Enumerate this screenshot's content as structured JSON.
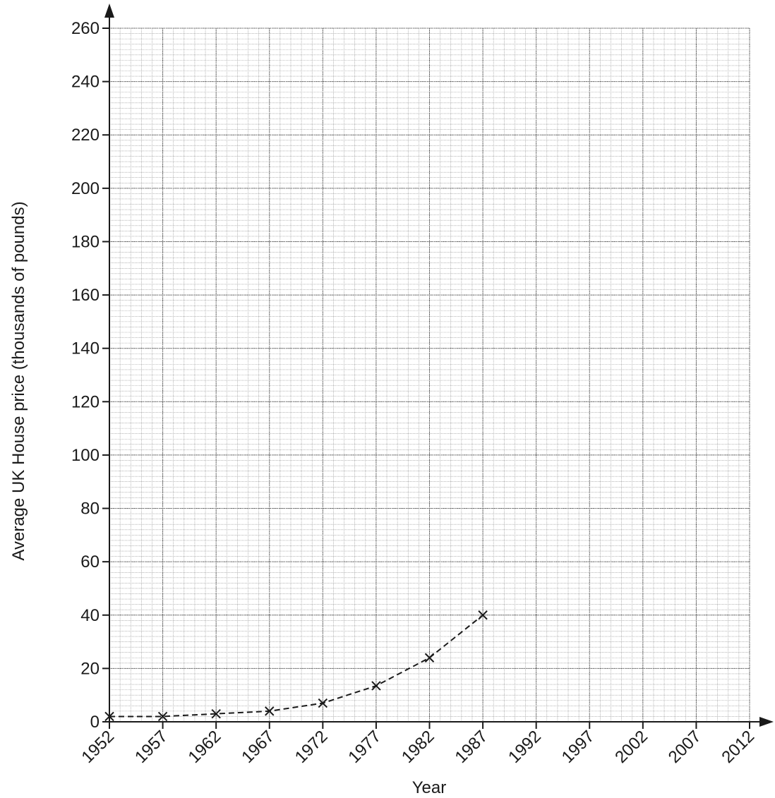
{
  "chart_data": {
    "type": "line",
    "title": "",
    "xlabel": "Year",
    "ylabel": "Average UK House price (thousands of pounds)",
    "xlim": [
      1952,
      2012
    ],
    "ylim": [
      0,
      260
    ],
    "x_ticks": [
      "1952",
      "1957",
      "1962",
      "1967",
      "1972",
      "1977",
      "1982",
      "1987",
      "1992",
      "1997",
      "2002",
      "2007",
      "2012"
    ],
    "y_ticks": [
      "0",
      "20",
      "40",
      "60",
      "80",
      "100",
      "120",
      "140",
      "160",
      "180",
      "200",
      "220",
      "240",
      "260"
    ],
    "grid": true,
    "line_style": "dashed",
    "marker": "x",
    "colors": {
      "line": "#1a1a1a",
      "grid_minor": "#8a8a8a",
      "grid_major": "#555555",
      "axis": "#1a1a1a"
    },
    "series": [
      {
        "x": [
          1952,
          1957,
          1962,
          1967,
          1972,
          1977,
          1982,
          1987
        ],
        "values": [
          2,
          2,
          3,
          4,
          7,
          13.5,
          24,
          40
        ]
      }
    ]
  }
}
